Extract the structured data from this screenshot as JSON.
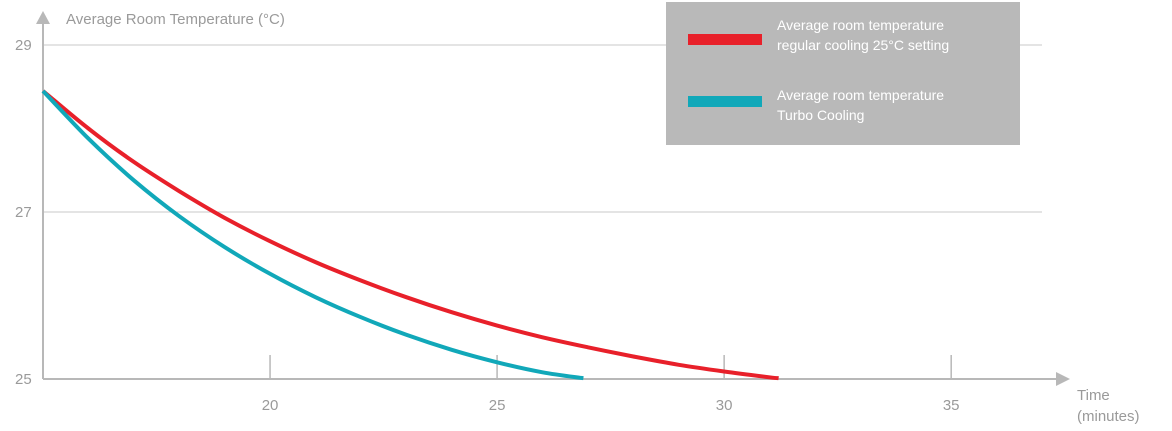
{
  "chart_data": {
    "type": "line",
    "title": "",
    "ylabel": "Average Room Temperature (°C)",
    "xlabel_lines": [
      "Time",
      "(minutes)"
    ],
    "xlim": [
      15,
      37
    ],
    "ylim": [
      25,
      29.3
    ],
    "x_ticks": [
      20,
      25,
      30,
      35
    ],
    "y_ticks": [
      25,
      27,
      29
    ],
    "grid": "horizontal",
    "legend_position": "top-right",
    "series": [
      {
        "key": "regular",
        "legend_lines": [
          "Average room temperature",
          "regular cooling 25°C setting"
        ],
        "color": "#e8202a",
        "points": [
          [
            15,
            28.45
          ],
          [
            16,
            28.0
          ],
          [
            17,
            27.6
          ],
          [
            18,
            27.25
          ],
          [
            19,
            26.93
          ],
          [
            20,
            26.65
          ],
          [
            21,
            26.4
          ],
          [
            22,
            26.18
          ],
          [
            23,
            25.98
          ],
          [
            24,
            25.8
          ],
          [
            25,
            25.64
          ],
          [
            26,
            25.5
          ],
          [
            27,
            25.38
          ],
          [
            28,
            25.27
          ],
          [
            29,
            25.17
          ],
          [
            30,
            25.09
          ],
          [
            31,
            25.02
          ],
          [
            31.2,
            25.01
          ]
        ]
      },
      {
        "key": "turbo",
        "legend_lines": [
          "Average room temperature",
          "Turbo Cooling"
        ],
        "color": "#11a8b9",
        "points": [
          [
            15,
            28.45
          ],
          [
            16,
            27.88
          ],
          [
            17,
            27.38
          ],
          [
            18,
            26.95
          ],
          [
            19,
            26.58
          ],
          [
            20,
            26.26
          ],
          [
            21,
            25.98
          ],
          [
            22,
            25.74
          ],
          [
            23,
            25.53
          ],
          [
            24,
            25.35
          ],
          [
            25,
            25.2
          ],
          [
            26,
            25.08
          ],
          [
            26.9,
            25.01
          ]
        ]
      }
    ],
    "colors": {
      "axis": "#b8b8b8",
      "grid": "#c8c8c8",
      "tick_text": "#9a9a9a",
      "legend_bg": "#b9b9b9",
      "legend_text": "#ffffff"
    }
  }
}
